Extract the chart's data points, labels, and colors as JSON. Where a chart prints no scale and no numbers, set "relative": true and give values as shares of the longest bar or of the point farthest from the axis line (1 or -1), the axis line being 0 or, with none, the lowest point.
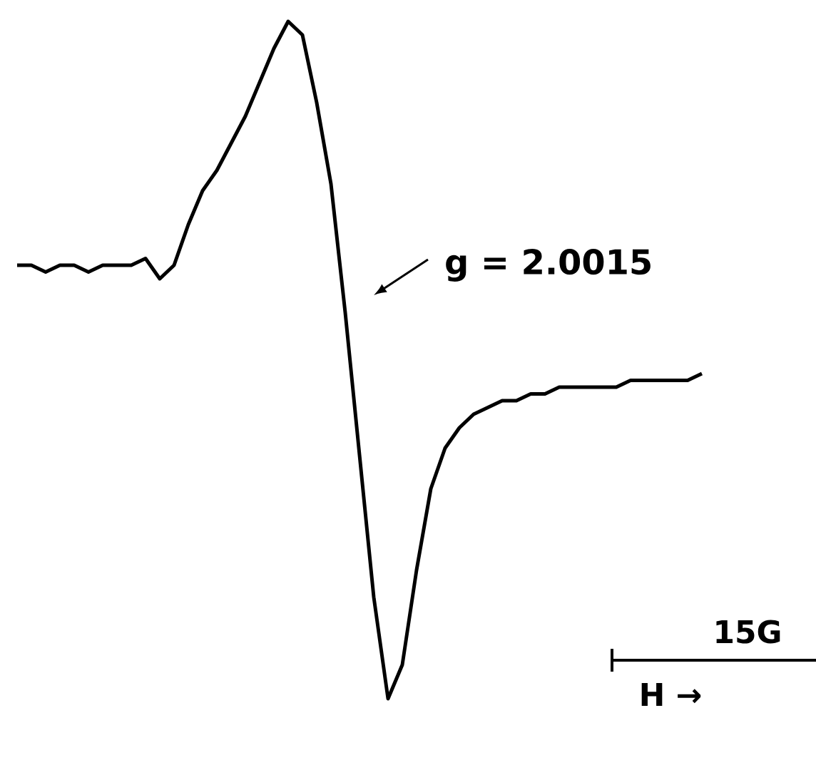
{
  "chart_data": {
    "type": "line",
    "relative": true,
    "color": "#000000",
    "categories": [
      null,
      null,
      null,
      null,
      null,
      null,
      null,
      null,
      null,
      null,
      null,
      null,
      null,
      null,
      null,
      null,
      null,
      null,
      null,
      null,
      null,
      null,
      null,
      null,
      null,
      null,
      null,
      null,
      null,
      null,
      null,
      null,
      null,
      null,
      null,
      null,
      null,
      null,
      null,
      null,
      null,
      null,
      null,
      null,
      null,
      null,
      null,
      null,
      null
    ],
    "values": [
      0.64,
      0.64,
      0.63,
      0.64,
      0.64,
      0.63,
      0.64,
      0.64,
      0.64,
      0.65,
      0.62,
      0.64,
      0.7,
      0.75,
      0.78,
      0.82,
      0.86,
      0.91,
      0.96,
      1,
      0.98,
      0.88,
      0.76,
      0.57,
      0.36,
      0.15,
      0,
      0.05,
      0.19,
      0.31,
      0.37,
      0.4,
      0.42,
      0.43,
      0.44,
      0.44,
      0.45,
      0.45,
      0.46,
      0.46,
      0.46,
      0.46,
      0.46,
      0.47,
      0.47,
      0.47,
      0.47,
      0.47,
      0.48
    ],
    "annotations": [
      "g = 2.0015",
      "15G",
      "H →"
    ]
  }
}
